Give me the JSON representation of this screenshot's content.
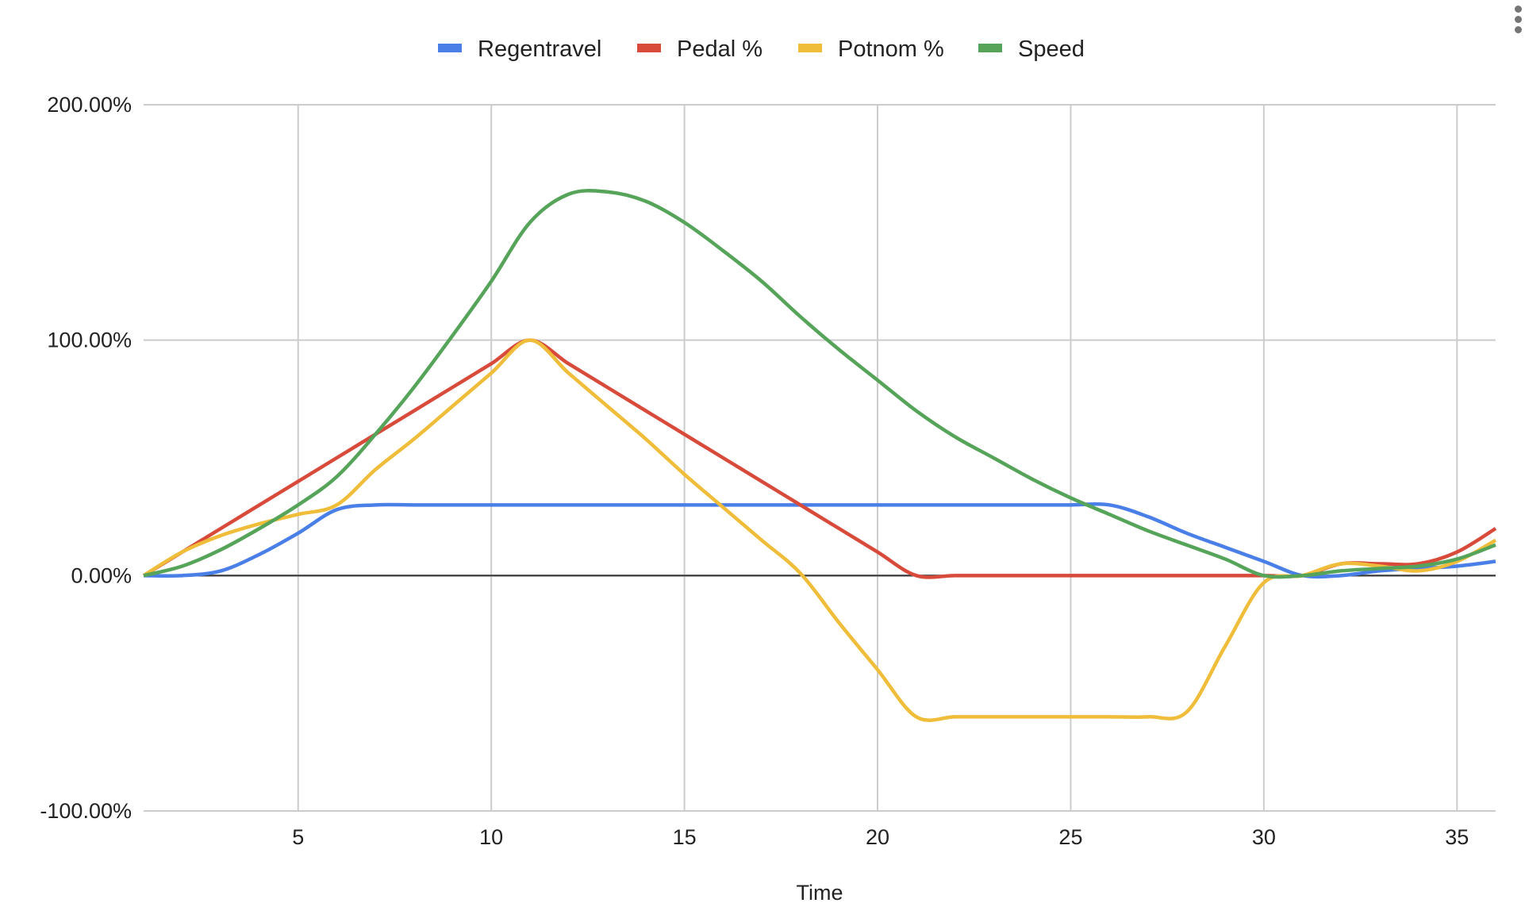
{
  "chart_data": {
    "type": "line",
    "title": "",
    "xlabel": "Time",
    "ylabel": "",
    "xlim": [
      1,
      36
    ],
    "ylim": [
      -100,
      200
    ],
    "x_ticks": [
      "5",
      "10",
      "15",
      "20",
      "25",
      "30",
      "35"
    ],
    "y_ticks": [
      "200.00%",
      "100.00%",
      "0.00%",
      "-100.00%"
    ],
    "grid": true,
    "legend": "top",
    "smooth": true,
    "x": [
      1,
      2,
      3,
      4,
      5,
      6,
      7,
      8,
      9,
      10,
      11,
      12,
      13,
      14,
      15,
      16,
      17,
      18,
      19,
      20,
      21,
      22,
      23,
      24,
      25,
      26,
      27,
      28,
      29,
      30,
      31,
      32,
      33,
      34,
      35,
      36
    ],
    "series": [
      {
        "name": "Regentravel",
        "color": "#4a7fe8",
        "values": [
          0,
          0,
          2,
          9,
          18,
          28,
          30,
          30,
          30,
          30,
          30,
          30,
          30,
          30,
          30,
          30,
          30,
          30,
          30,
          30,
          30,
          30,
          30,
          30,
          30,
          30,
          25,
          18,
          12,
          6,
          0,
          0,
          2,
          3,
          4,
          6
        ]
      },
      {
        "name": "Pedal %",
        "color": "#d84a3a",
        "values": [
          0,
          10,
          20,
          30,
          40,
          50,
          60,
          70,
          80,
          90,
          100,
          90,
          80,
          70,
          60,
          50,
          40,
          30,
          20,
          10,
          0,
          0,
          0,
          0,
          0,
          0,
          0,
          0,
          0,
          0,
          0,
          5,
          5,
          5,
          10,
          20
        ]
      },
      {
        "name": "Potnom %",
        "color": "#f0bd3a",
        "values": [
          0,
          10,
          17,
          22,
          26,
          30,
          45,
          58,
          72,
          86,
          100,
          86,
          72,
          58,
          43,
          29,
          15,
          1,
          -20,
          -40,
          -60,
          -60,
          -60,
          -60,
          -60,
          -60,
          -60,
          -58,
          -30,
          -3,
          0,
          5,
          4,
          2,
          6,
          15
        ]
      },
      {
        "name": "Speed",
        "color": "#55a459",
        "values": [
          0,
          4,
          11,
          20,
          30,
          42,
          60,
          80,
          102,
          125,
          150,
          162,
          163,
          159,
          150,
          138,
          125,
          110,
          96,
          83,
          70,
          59,
          50,
          41,
          33,
          26,
          19,
          13,
          7,
          0,
          0,
          2,
          3,
          4,
          7,
          13
        ]
      }
    ]
  },
  "menu_icon": "more-vert-icon"
}
